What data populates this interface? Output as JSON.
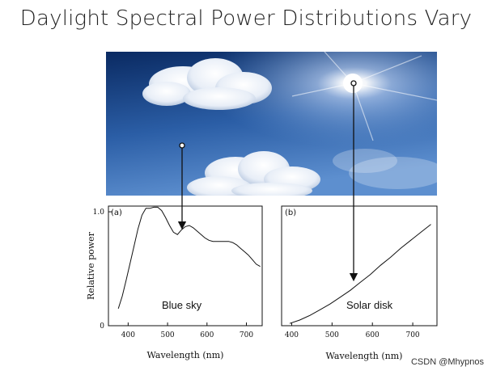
{
  "title": "Daylight Spectral Power Distributions Vary",
  "photo": {
    "sky_color_top": "#0b2f6b",
    "sky_color_bottom": "#5b8fd0",
    "sun_color": "#ffffff"
  },
  "panel_a": {
    "tag": "(a)",
    "ylabel": "Relative power",
    "xlabel": "Wavelength (nm)",
    "curve_label": "Blue sky",
    "yticks": [
      "0",
      "1.0"
    ],
    "xticks": [
      "400",
      "500",
      "600",
      "700"
    ]
  },
  "panel_b": {
    "tag": "(b)",
    "xlabel": "Wavelength (nm)",
    "curve_label": "Solar disk",
    "xticks": [
      "400",
      "500",
      "600",
      "700"
    ]
  },
  "watermark": "CSDN @Mhypnos",
  "chart_data": [
    {
      "type": "line",
      "title": "",
      "xlabel": "Wavelength (nm)",
      "ylabel": "Relative power",
      "xlim": [
        350,
        740
      ],
      "ylim": [
        0,
        1.05
      ],
      "series": [
        {
          "name": "Blue sky",
          "x": [
            375,
            385,
            395,
            405,
            415,
            425,
            435,
            445,
            455,
            465,
            475,
            485,
            495,
            505,
            515,
            525,
            535,
            545,
            555,
            565,
            575,
            585,
            595,
            605,
            615,
            625,
            635,
            645,
            655,
            665,
            675,
            685,
            695,
            705,
            715,
            725,
            735
          ],
          "y": [
            0.15,
            0.26,
            0.4,
            0.55,
            0.7,
            0.85,
            0.97,
            1.03,
            1.03,
            1.04,
            1.04,
            1.01,
            0.95,
            0.88,
            0.82,
            0.8,
            0.84,
            0.87,
            0.88,
            0.86,
            0.83,
            0.8,
            0.77,
            0.75,
            0.74,
            0.74,
            0.74,
            0.74,
            0.74,
            0.73,
            0.71,
            0.68,
            0.65,
            0.62,
            0.58,
            0.54,
            0.52
          ]
        }
      ]
    },
    {
      "type": "line",
      "title": "",
      "xlabel": "Wavelength (nm)",
      "ylabel": "",
      "xlim": [
        375,
        760
      ],
      "ylim": [
        0,
        1.05
      ],
      "series": [
        {
          "name": "Solar disk",
          "x": [
            395,
            420,
            445,
            470,
            495,
            520,
            545,
            570,
            595,
            620,
            645,
            670,
            695,
            720,
            745
          ],
          "y": [
            0.02,
            0.05,
            0.09,
            0.14,
            0.19,
            0.25,
            0.31,
            0.38,
            0.45,
            0.53,
            0.6,
            0.68,
            0.75,
            0.82,
            0.89
          ]
        }
      ]
    }
  ]
}
